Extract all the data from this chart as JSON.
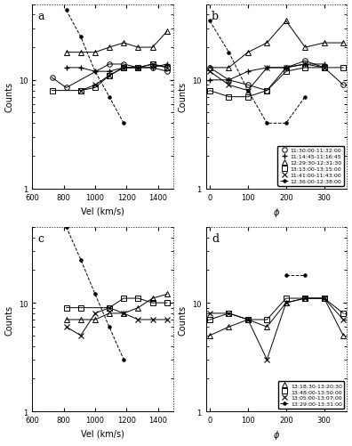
{
  "vel_bins": [
    725,
    816,
    908,
    1000,
    1090,
    1182,
    1274,
    1366,
    1458
  ],
  "phi_bins": [
    0,
    50,
    100,
    150,
    200,
    250,
    300,
    350
  ],
  "panel_a": {
    "ylim": [
      1,
      50
    ],
    "series": [
      {
        "label": "11:30:00-11:32:00",
        "marker": "o",
        "markerfill": "none",
        "dashed": false,
        "values": [
          10.5,
          8.5,
          null,
          null,
          14,
          14,
          13,
          13,
          12
        ]
      },
      {
        "label": "11:14:45-11:16:45",
        "marker": "+",
        "markerfill": "full",
        "dashed": false,
        "values": [
          null,
          13,
          13,
          12,
          12,
          13,
          13,
          13,
          14
        ]
      },
      {
        "label": "12:29:30-12:31:30",
        "marker": "^",
        "markerfill": "none",
        "dashed": false,
        "values": [
          null,
          18,
          18,
          18,
          20,
          22,
          20,
          20,
          28
        ]
      },
      {
        "label": "13:13:00-13:15:00",
        "marker": "s",
        "markerfill": "none",
        "dashed": false,
        "values": [
          8,
          null,
          8,
          8.5,
          11,
          13,
          13,
          14,
          13
        ]
      },
      {
        "label": "11:41:00-11:43:00",
        "marker": "x",
        "markerfill": "full",
        "dashed": false,
        "values": [
          null,
          null,
          8,
          9,
          11,
          13,
          13,
          14,
          13
        ]
      },
      {
        "label": "12:36:00-12:38:00",
        "marker": ".",
        "markerfill": "full",
        "dashed": true,
        "values": [
          null,
          44,
          25,
          12,
          7,
          4,
          null,
          null,
          null
        ]
      }
    ]
  },
  "panel_b": {
    "ylim": [
      1,
      50
    ],
    "series": [
      {
        "label": "11:30:00-11:32:00",
        "marker": "o",
        "markerfill": "none",
        "dashed": false,
        "values": [
          13,
          10,
          9,
          8,
          13,
          15,
          13,
          9
        ]
      },
      {
        "label": "11:14:45-11:16:45",
        "marker": "+",
        "markerfill": "full",
        "dashed": false,
        "values": [
          10,
          10,
          12,
          13,
          13,
          14,
          14,
          null
        ]
      },
      {
        "label": "12:29:30-12:31:30",
        "marker": "^",
        "markerfill": "none",
        "dashed": false,
        "values": [
          13,
          13,
          18,
          22,
          35,
          20,
          22,
          22
        ]
      },
      {
        "label": "13:13:00-13:15:00",
        "marker": "s",
        "markerfill": "none",
        "dashed": false,
        "values": [
          8,
          7,
          7,
          8,
          12,
          13,
          13,
          13
        ]
      },
      {
        "label": "11:41:00-11:43:00",
        "marker": "x",
        "markerfill": "full",
        "dashed": false,
        "values": [
          12,
          9,
          8,
          13,
          13,
          14,
          13,
          null
        ]
      },
      {
        "label": "12:36:00-12:38:00",
        "marker": ".",
        "markerfill": "full",
        "dashed": true,
        "values": [
          35,
          18,
          8,
          4,
          4,
          7,
          null,
          null
        ]
      }
    ]
  },
  "panel_c": {
    "ylim": [
      1,
      50
    ],
    "series": [
      {
        "label": "13:18:30-13:20:30",
        "marker": "^",
        "markerfill": "none",
        "dashed": false,
        "values": [
          null,
          7,
          7,
          7,
          8,
          8,
          9,
          11,
          12
        ]
      },
      {
        "label": "13:48:00-13:50:00",
        "marker": "s",
        "markerfill": "none",
        "dashed": false,
        "values": [
          null,
          9,
          9,
          null,
          9,
          11,
          11,
          10,
          10
        ]
      },
      {
        "label": "13:05:00-13:07:00",
        "marker": "x",
        "markerfill": "full",
        "dashed": false,
        "values": [
          null,
          6,
          5,
          8,
          9,
          8,
          7,
          7,
          7
        ]
      },
      {
        "label": "13:29:00-13:31:00",
        "marker": ".",
        "markerfill": "full",
        "dashed": true,
        "values": [
          null,
          50,
          25,
          12,
          6,
          3,
          null,
          null,
          null
        ]
      }
    ]
  },
  "panel_d": {
    "ylim": [
      1,
      50
    ],
    "series": [
      {
        "label": "13:18:30-13:20:30",
        "marker": "^",
        "markerfill": "none",
        "dashed": false,
        "values": [
          5,
          6,
          7,
          6,
          10,
          11,
          11,
          5
        ]
      },
      {
        "label": "13:48:00-13:50:00",
        "marker": "s",
        "markerfill": "none",
        "dashed": false,
        "values": [
          7,
          8,
          7,
          7,
          11,
          11,
          11,
          8
        ]
      },
      {
        "label": "13:05:00-13:07:00",
        "marker": "x",
        "markerfill": "full",
        "dashed": false,
        "values": [
          8,
          8,
          7,
          3,
          10,
          11,
          11,
          7
        ]
      },
      {
        "label": "13:29:00-13:31:00",
        "marker": ".",
        "markerfill": "full",
        "dashed": true,
        "values": [
          null,
          null,
          null,
          null,
          18,
          18,
          null,
          null
        ]
      }
    ]
  },
  "legend_b": [
    {
      "label": "11:30:00-11:32:00",
      "marker": "o",
      "mfc": "none"
    },
    {
      "label": "11:14:45-11:16:45",
      "marker": "+",
      "mfc": "black"
    },
    {
      "label": "12:29:30-12:31:30",
      "marker": "^",
      "mfc": "none"
    },
    {
      "label": "13:13:00-13:15:00",
      "marker": "s",
      "mfc": "none"
    },
    {
      "label": "11:41:00-11:43:00",
      "marker": "x",
      "mfc": "black"
    },
    {
      "label": "12:36:00-12:38:00",
      "marker": ".",
      "mfc": "black",
      "dashed": true
    }
  ],
  "legend_d": [
    {
      "label": "13:18:30-13:20:30",
      "marker": "^",
      "mfc": "none"
    },
    {
      "label": "13:48:00-13:50:00",
      "marker": "s",
      "mfc": "none"
    },
    {
      "label": "13:05:00-13:07:00",
      "marker": "x",
      "mfc": "black"
    },
    {
      "label": "13:29:00-13:31:00",
      "marker": ".",
      "mfc": "black",
      "dashed": true
    }
  ]
}
